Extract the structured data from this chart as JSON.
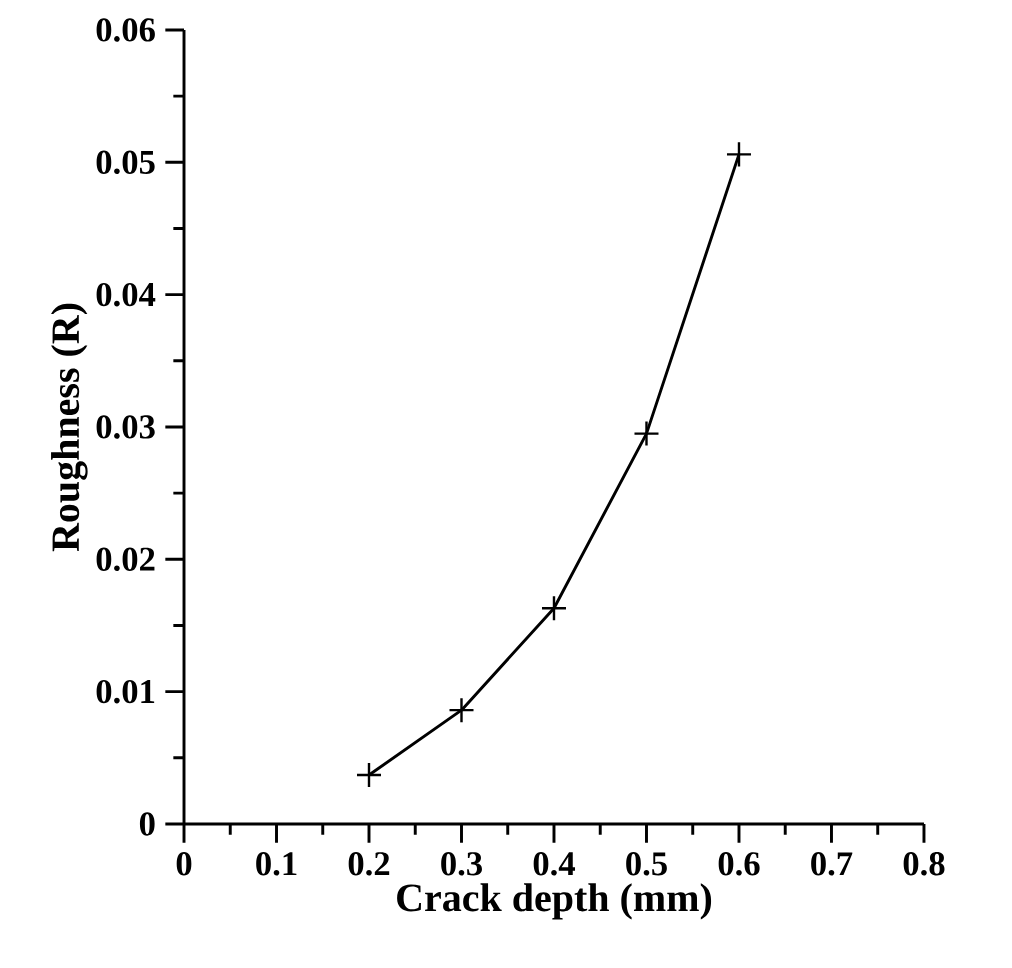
{
  "chart_data": {
    "type": "line",
    "xlabel": "Crack depth (mm)",
    "ylabel": "Roughness (R)",
    "x": [
      0.2,
      0.3,
      0.4,
      0.5,
      0.6
    ],
    "series": [
      {
        "color": "#000000",
        "values": [
          0.0037,
          0.0086,
          0.0163,
          0.0295,
          0.0506
        ]
      }
    ],
    "xlim": [
      0,
      0.8
    ],
    "ylim": [
      0,
      0.06
    ],
    "xticks": [
      {
        "value": 0,
        "label": "0"
      },
      0.1,
      0.2,
      0.3,
      0.4,
      0.5,
      0.6,
      0.7,
      0.8
    ],
    "yticks": [
      {
        "value": 0,
        "label": "0"
      },
      0.01,
      0.02,
      0.03,
      0.04,
      0.05,
      0.06
    ],
    "marker": "cross",
    "line_style": "solid"
  }
}
